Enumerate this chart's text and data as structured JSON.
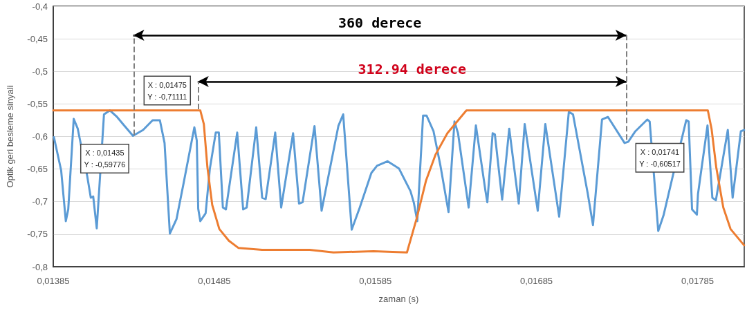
{
  "chart_data": {
    "type": "line",
    "xlabel": "zaman (s)",
    "ylabel": "Optik geri besleme sinyali",
    "xlim": [
      0.01385,
      0.01814
    ],
    "ylim": [
      -0.8,
      -0.4
    ],
    "xticks": [
      {
        "value": 0.01385,
        "label": "0,01385"
      },
      {
        "value": 0.01485,
        "label": "0,01485"
      },
      {
        "value": 0.01585,
        "label": "0,01585"
      },
      {
        "value": 0.01685,
        "label": "0,01685"
      },
      {
        "value": 0.01785,
        "label": "0,01785"
      }
    ],
    "yticks": [
      {
        "value": -0.8,
        "label": "-0,8"
      },
      {
        "value": -0.75,
        "label": "-0,75"
      },
      {
        "value": -0.7,
        "label": "-0,7"
      },
      {
        "value": -0.65,
        "label": "-0,65"
      },
      {
        "value": -0.6,
        "label": "-0,6"
      },
      {
        "value": -0.55,
        "label": "-0,55"
      },
      {
        "value": -0.5,
        "label": "-0,5"
      },
      {
        "value": -0.45,
        "label": "-0,45"
      },
      {
        "value": -0.4,
        "label": "-0,4"
      }
    ],
    "grid": "y",
    "marker": "none",
    "line_style": "solid",
    "series": [
      {
        "color": "#5b9bd5",
        "x": [
          0.013854,
          0.013899,
          0.013928,
          0.013943,
          0.013977,
          0.014002,
          0.014061,
          0.014083,
          0.014098,
          0.01412,
          0.014165,
          0.014202,
          0.014246,
          0.01429,
          0.014345,
          0.014408,
          0.014467,
          0.014512,
          0.014541,
          0.014574,
          0.014615,
          0.014659,
          0.014726,
          0.014741,
          0.01475,
          0.014763,
          0.014796,
          0.014822,
          0.014859,
          0.014878,
          0.014903,
          0.014922,
          0.014992,
          0.015029,
          0.015051,
          0.01511,
          0.015147,
          0.015169,
          0.015228,
          0.015265,
          0.015339,
          0.015376,
          0.015398,
          0.015472,
          0.015516,
          0.01562,
          0.01565,
          0.015703,
          0.015753,
          0.015825,
          0.01586,
          0.015925,
          0.015996,
          0.016068,
          0.016089,
          0.01611,
          0.016146,
          0.016168,
          0.016211,
          0.016254,
          0.016304,
          0.016341,
          0.016363,
          0.016429,
          0.016474,
          0.016533,
          0.016545,
          0.016578,
          0.016592,
          0.016637,
          0.016681,
          0.01674,
          0.016777,
          0.016858,
          0.016905,
          0.016991,
          0.017051,
          0.017077,
          0.017168,
          0.017201,
          0.017257,
          0.017294,
          0.017397,
          0.01742,
          0.017464,
          0.017538,
          0.017553,
          0.01758,
          0.017606,
          0.017639,
          0.017698,
          0.01778,
          0.017795,
          0.017816,
          0.017846,
          0.017853,
          0.017912,
          0.017942,
          0.017964,
          0.018038,
          0.018068,
          0.018119,
          0.018139
        ],
        "values": [
          -0.601,
          -0.652,
          -0.73,
          -0.712,
          -0.573,
          -0.588,
          -0.661,
          -0.694,
          -0.692,
          -0.741,
          -0.566,
          -0.56,
          -0.57,
          -0.583,
          -0.599,
          -0.59,
          -0.575,
          -0.575,
          -0.61,
          -0.749,
          -0.727,
          -0.672,
          -0.586,
          -0.606,
          -0.711,
          -0.73,
          -0.718,
          -0.65,
          -0.594,
          -0.594,
          -0.709,
          -0.712,
          -0.594,
          -0.712,
          -0.709,
          -0.586,
          -0.694,
          -0.696,
          -0.594,
          -0.709,
          -0.595,
          -0.703,
          -0.701,
          -0.584,
          -0.714,
          -0.584,
          -0.566,
          -0.743,
          -0.709,
          -0.656,
          -0.645,
          -0.638,
          -0.649,
          -0.684,
          -0.702,
          -0.73,
          -0.568,
          -0.568,
          -0.592,
          -0.645,
          -0.716,
          -0.577,
          -0.595,
          -0.709,
          -0.583,
          -0.683,
          -0.701,
          -0.595,
          -0.597,
          -0.697,
          -0.588,
          -0.703,
          -0.581,
          -0.714,
          -0.581,
          -0.723,
          -0.562,
          -0.566,
          -0.687,
          -0.736,
          -0.574,
          -0.57,
          -0.61,
          -0.608,
          -0.592,
          -0.574,
          -0.577,
          -0.661,
          -0.745,
          -0.721,
          -0.659,
          -0.575,
          -0.577,
          -0.712,
          -0.72,
          -0.688,
          -0.583,
          -0.694,
          -0.698,
          -0.59,
          -0.694,
          -0.592,
          -0.59
        ]
      },
      {
        "color": "#ed7d31",
        "x": [
          0.01385,
          0.014763,
          0.014785,
          0.014807,
          0.014837,
          0.014881,
          0.01494,
          0.014999,
          0.015147,
          0.015442,
          0.01559,
          0.015838,
          0.016046,
          0.016105,
          0.016164,
          0.016223,
          0.016297,
          0.016415,
          0.017914,
          0.017937,
          0.017966,
          0.01801,
          0.018055,
          0.018139
        ],
        "values": [
          -0.56,
          -0.56,
          -0.581,
          -0.647,
          -0.705,
          -0.742,
          -0.76,
          -0.771,
          -0.774,
          -0.774,
          -0.778,
          -0.776,
          -0.778,
          -0.727,
          -0.668,
          -0.628,
          -0.595,
          -0.56,
          -0.56,
          -0.588,
          -0.647,
          -0.709,
          -0.742,
          -0.767
        ]
      }
    ],
    "ref_lines": [
      {
        "axis": "x",
        "value": 0.01435,
        "color": "#7f7f7f",
        "line_style": "dashed"
      },
      {
        "axis": "x",
        "value": 0.01475,
        "color": "#7f7f7f",
        "line_style": "dashed"
      },
      {
        "axis": "x",
        "value": 0.01741,
        "color": "#7f7f7f",
        "line_style": "dashed"
      }
    ],
    "annotations": [
      "360 derece",
      "312.94 derece",
      {
        "text": "X : 0,01435\nY : -0,59776",
        "x": 0.01435,
        "y": -0.59776
      },
      "X : 0,01475\nY : -0,71111",
      {
        "text": "X : 0,01741\nY : -0,60517",
        "x": 0.01741,
        "y": -0.60517
      }
    ]
  }
}
